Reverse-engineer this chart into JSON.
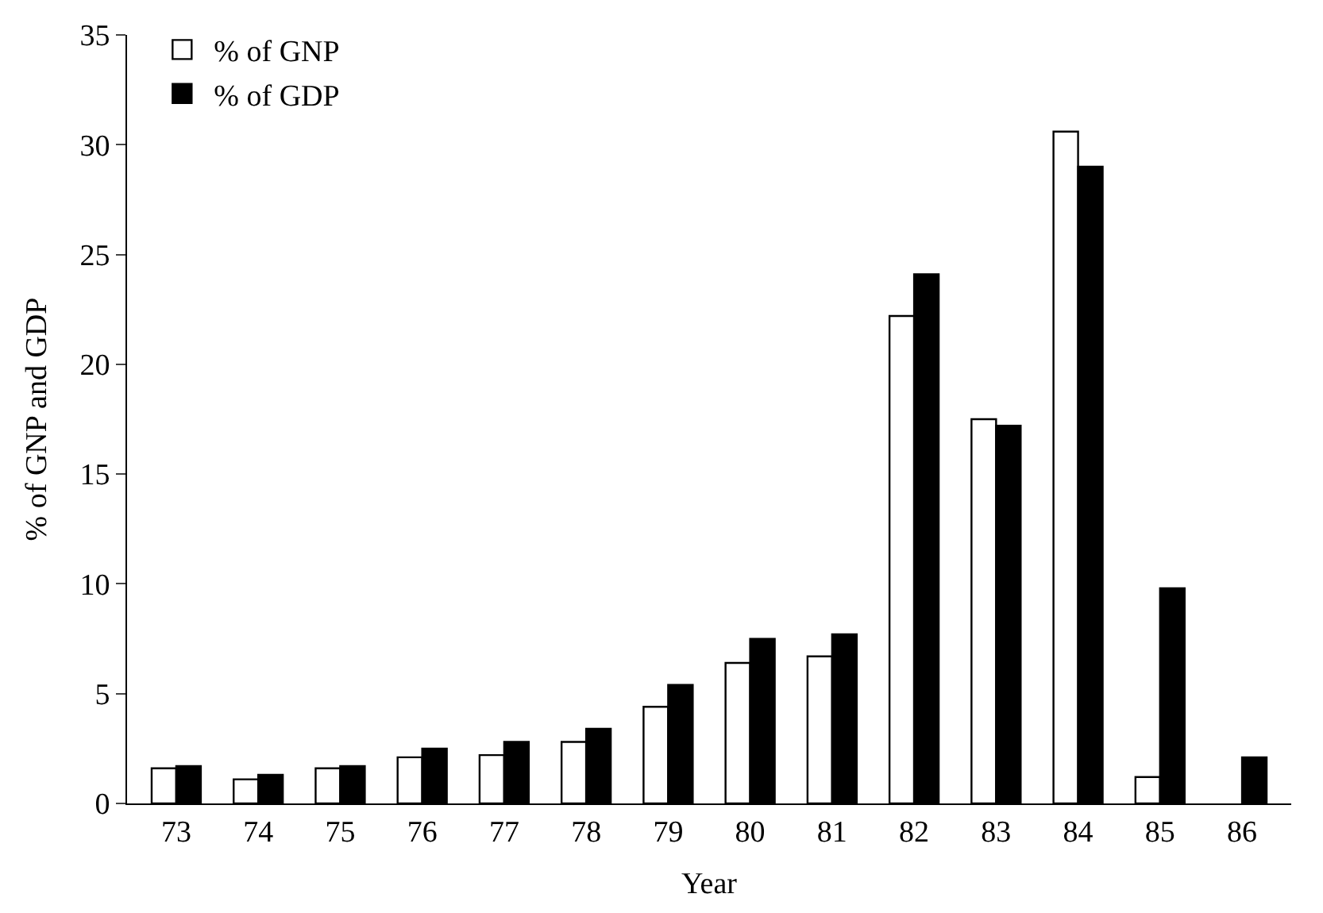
{
  "chart_data": {
    "type": "bar",
    "xlabel": "Year",
    "ylabel": "% of GNP and GDP",
    "categories": [
      "73",
      "74",
      "75",
      "76",
      "77",
      "78",
      "79",
      "80",
      "81",
      "82",
      "83",
      "84",
      "85",
      "86"
    ],
    "series": [
      {
        "name": "% of GNP",
        "color": "#ffffff",
        "values": [
          1.6,
          1.1,
          1.6,
          2.1,
          2.2,
          2.8,
          4.4,
          6.4,
          6.7,
          22.2,
          17.5,
          30.6,
          1.2,
          null
        ]
      },
      {
        "name": "% of GDP",
        "color": "#000000",
        "values": [
          1.7,
          1.3,
          1.7,
          2.5,
          2.8,
          3.4,
          5.4,
          7.5,
          7.7,
          24.1,
          17.2,
          29.0,
          9.8,
          2.1
        ]
      }
    ],
    "ylim": [
      0,
      35
    ],
    "yticks": [
      0,
      5,
      10,
      15,
      20,
      25,
      30,
      35
    ],
    "grid": false,
    "legend": "top left"
  }
}
